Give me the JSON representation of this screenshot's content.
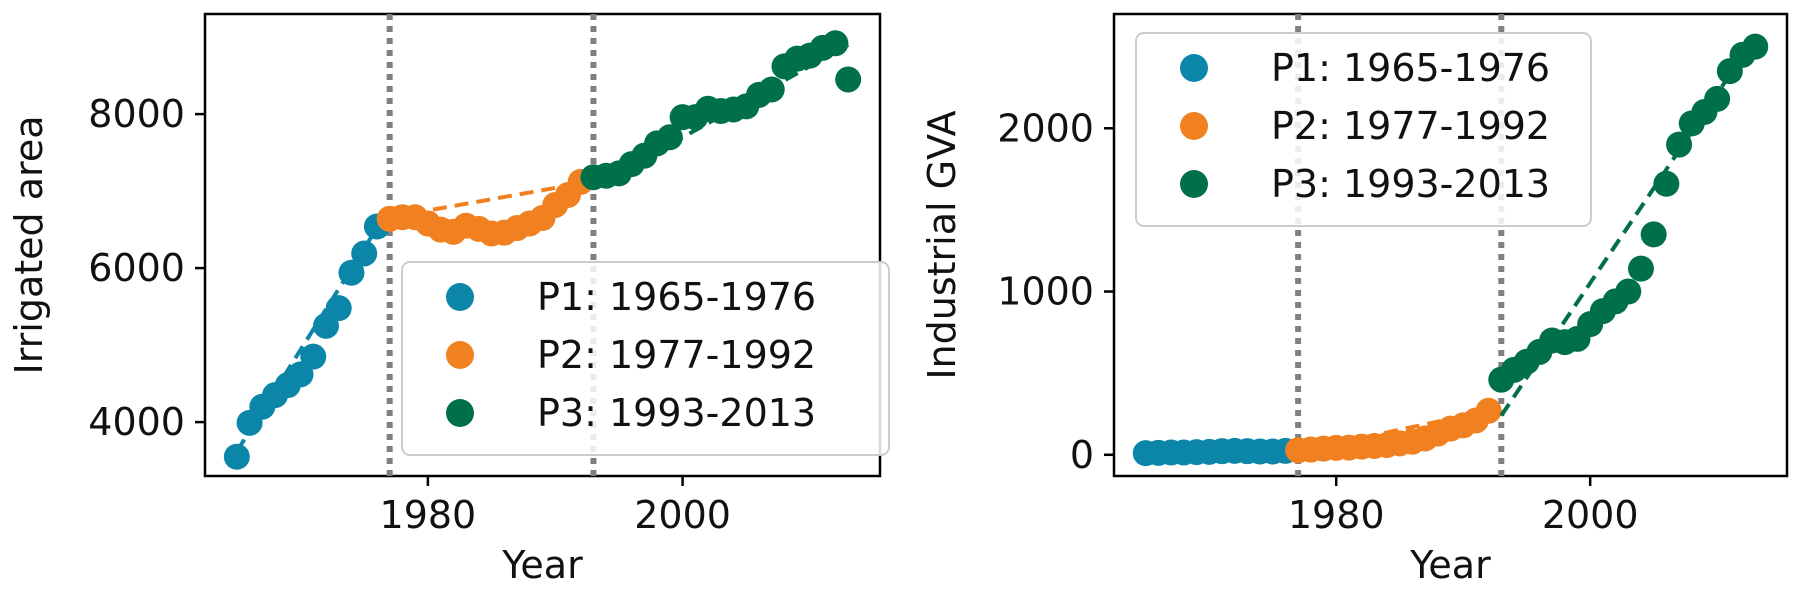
{
  "colors": {
    "P1": "#0c86a8",
    "P2": "#f08020",
    "P3": "#00704a",
    "vline": "#808080",
    "axes": "#000000"
  },
  "period_boundaries": [
    1977,
    1993
  ],
  "chart_data": [
    {
      "type": "scatter",
      "xlabel": "Year",
      "ylabel": "Irrigated area",
      "xlim": [
        1962.5,
        2015.5
      ],
      "ylim": [
        3300,
        9300
      ],
      "xticks": [
        1980,
        2000
      ],
      "yticks": [
        4000,
        6000,
        8000
      ],
      "legend_placement": "lower-right",
      "series": [
        {
          "name": "P1: 1965-1976",
          "color_key": "P1",
          "points": [
            [
              1965,
              3550
            ],
            [
              1966,
              3990
            ],
            [
              1967,
              4200
            ],
            [
              1968,
              4350
            ],
            [
              1969,
              4480
            ],
            [
              1970,
              4620
            ],
            [
              1971,
              4850
            ],
            [
              1972,
              5250
            ],
            [
              1973,
              5480
            ],
            [
              1974,
              5940
            ],
            [
              1975,
              6190
            ],
            [
              1976,
              6540
            ]
          ],
          "fit": [
            [
              1965,
              3620
            ],
            [
              1976,
              6520
            ]
          ]
        },
        {
          "name": "P2: 1977-1992",
          "color_key": "P2",
          "points": [
            [
              1977,
              6640
            ],
            [
              1978,
              6660
            ],
            [
              1979,
              6660
            ],
            [
              1980,
              6580
            ],
            [
              1981,
              6500
            ],
            [
              1982,
              6470
            ],
            [
              1983,
              6550
            ],
            [
              1984,
              6510
            ],
            [
              1985,
              6450
            ],
            [
              1986,
              6460
            ],
            [
              1987,
              6520
            ],
            [
              1988,
              6580
            ],
            [
              1989,
              6650
            ],
            [
              1990,
              6820
            ],
            [
              1991,
              6950
            ],
            [
              1992,
              7120
            ]
          ],
          "fit": [
            [
              1977,
              6660
            ],
            [
              1992,
              7100
            ]
          ]
        },
        {
          "name": "P3: 1993-2013",
          "color_key": "P3",
          "points": [
            [
              1993,
              7180
            ],
            [
              1994,
              7200
            ],
            [
              1995,
              7230
            ],
            [
              1996,
              7350
            ],
            [
              1997,
              7460
            ],
            [
              1998,
              7620
            ],
            [
              1999,
              7700
            ],
            [
              2000,
              7960
            ],
            [
              2001,
              7960
            ],
            [
              2002,
              8070
            ],
            [
              2003,
              8040
            ],
            [
              2004,
              8060
            ],
            [
              2005,
              8100
            ],
            [
              2006,
              8250
            ],
            [
              2007,
              8320
            ],
            [
              2008,
              8620
            ],
            [
              2009,
              8720
            ],
            [
              2010,
              8760
            ],
            [
              2011,
              8860
            ],
            [
              2012,
              8920
            ],
            [
              2013,
              8450
            ]
          ],
          "fit": [
            [
              1993,
              7050
            ],
            [
              2013,
              8900
            ]
          ]
        }
      ]
    },
    {
      "type": "scatter",
      "xlabel": "Year",
      "ylabel": "Industrial GVA",
      "xlim": [
        1962.5,
        2015.5
      ],
      "ylim": [
        -130,
        2700
      ],
      "xticks": [
        1980,
        2000
      ],
      "yticks": [
        0,
        1000,
        2000
      ],
      "legend_placement": "upper-left",
      "series": [
        {
          "name": "P1: 1965-1976",
          "color_key": "P1",
          "points": [
            [
              1965,
              10
            ],
            [
              1966,
              12
            ],
            [
              1967,
              14
            ],
            [
              1968,
              14
            ],
            [
              1969,
              16
            ],
            [
              1970,
              18
            ],
            [
              1971,
              22
            ],
            [
              1972,
              24
            ],
            [
              1973,
              22
            ],
            [
              1974,
              20
            ],
            [
              1975,
              20
            ],
            [
              1976,
              24
            ]
          ],
          "fit": [
            [
              1965,
              10
            ],
            [
              1976,
              24
            ]
          ]
        },
        {
          "name": "P2: 1977-1992",
          "color_key": "P2",
          "points": [
            [
              1977,
              28
            ],
            [
              1978,
              32
            ],
            [
              1979,
              38
            ],
            [
              1980,
              42
            ],
            [
              1981,
              44
            ],
            [
              1982,
              50
            ],
            [
              1983,
              54
            ],
            [
              1984,
              60
            ],
            [
              1985,
              70
            ],
            [
              1986,
              80
            ],
            [
              1987,
              100
            ],
            [
              1988,
              130
            ],
            [
              1989,
              160
            ],
            [
              1990,
              180
            ],
            [
              1991,
              210
            ],
            [
              1992,
              270
            ]
          ],
          "fit": [
            [
              1977,
              20
            ],
            [
              1992,
              270
            ]
          ]
        },
        {
          "name": "P3: 1993-2013",
          "color_key": "P3",
          "points": [
            [
              1993,
              460
            ],
            [
              1994,
              520
            ],
            [
              1995,
              570
            ],
            [
              1996,
              630
            ],
            [
              1997,
              700
            ],
            [
              1998,
              690
            ],
            [
              1999,
              710
            ],
            [
              2000,
              800
            ],
            [
              2001,
              880
            ],
            [
              2002,
              940
            ],
            [
              2003,
              1000
            ],
            [
              2004,
              1140
            ],
            [
              2005,
              1350
            ],
            [
              2006,
              1660
            ],
            [
              2007,
              1900
            ],
            [
              2008,
              2030
            ],
            [
              2009,
              2100
            ],
            [
              2010,
              2180
            ],
            [
              2011,
              2350
            ],
            [
              2012,
              2450
            ],
            [
              2013,
              2500
            ]
          ],
          "fit": [
            [
              1993,
              240
            ],
            [
              2013,
              2560
            ]
          ]
        }
      ]
    }
  ]
}
